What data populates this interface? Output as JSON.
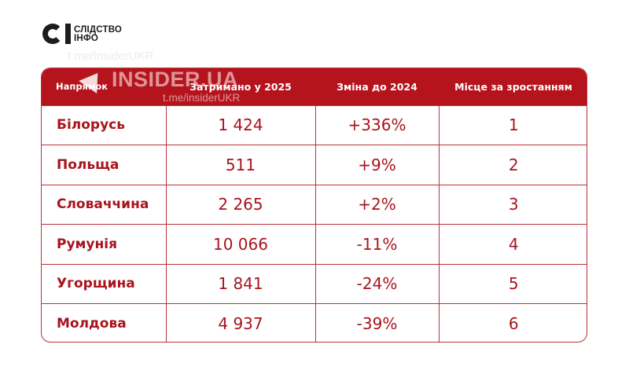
{
  "logo": {
    "line1": "СЛІДСТВО",
    "line2": "ІНФО"
  },
  "watermark": {
    "brand": "INSIDER.UA",
    "link": "t.me/insiderUKR",
    "link_top": "t.me/insiderUKR"
  },
  "colors": {
    "accent": "#b5141d",
    "text_red": "#a8141d",
    "border": "#b8323a"
  },
  "table": {
    "headers": [
      "Напрямок",
      "Затримано у 2025",
      "Зміна до 2024",
      "Місце за зростанням"
    ],
    "rows": [
      {
        "direction": "Білорусь",
        "detained_2025": "1 424",
        "change_vs_2024": "+336%",
        "rank": "1"
      },
      {
        "direction": "Польща",
        "detained_2025": "511",
        "change_vs_2024": "+9%",
        "rank": "2"
      },
      {
        "direction": "Словаччина",
        "detained_2025": "2 265",
        "change_vs_2024": "+2%",
        "rank": "3"
      },
      {
        "direction": "Румунія",
        "detained_2025": "10 066",
        "change_vs_2024": "-11%",
        "rank": "4"
      },
      {
        "direction": "Угорщина",
        "detained_2025": "1 841",
        "change_vs_2024": "-24%",
        "rank": "5"
      },
      {
        "direction": "Молдова",
        "detained_2025": "4 937",
        "change_vs_2024": "-39%",
        "rank": "6"
      }
    ]
  }
}
